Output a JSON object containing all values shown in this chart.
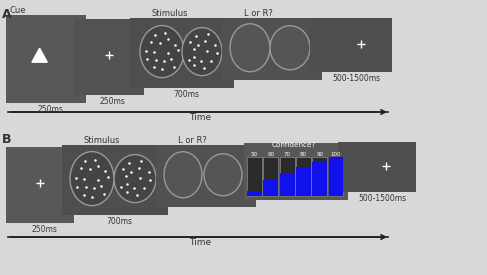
{
  "bg_outer": "#d8d8d8",
  "panel_color": "#555555",
  "text_color_white": "#ffffff",
  "text_color_dark": "#333333",
  "ellipse_color": "#999999",
  "dot_color": "#ffffff",
  "bar_blue": "#1111ee",
  "bar_bg": "#333333",
  "confidence_labels": [
    "50",
    "60",
    "70",
    "80",
    "90",
    "100"
  ],
  "confidence_fills": [
    0.12,
    0.42,
    0.58,
    0.75,
    0.88,
    1.0
  ],
  "row_A_label": "A",
  "row_B_label": "B",
  "time_label": "Time",
  "cue_label": "Cue",
  "stimulus_label": "Stimulus",
  "lor_label": "L or R?",
  "confidence_label": "Confidence?",
  "t250_label": "250ms",
  "t250b_label": "250ms",
  "t700_label": "700ms",
  "t500_label": "500-1500ms",
  "t250c_label": "250ms",
  "t700b_label": "700ms",
  "t500b_label": "500-1500ms"
}
